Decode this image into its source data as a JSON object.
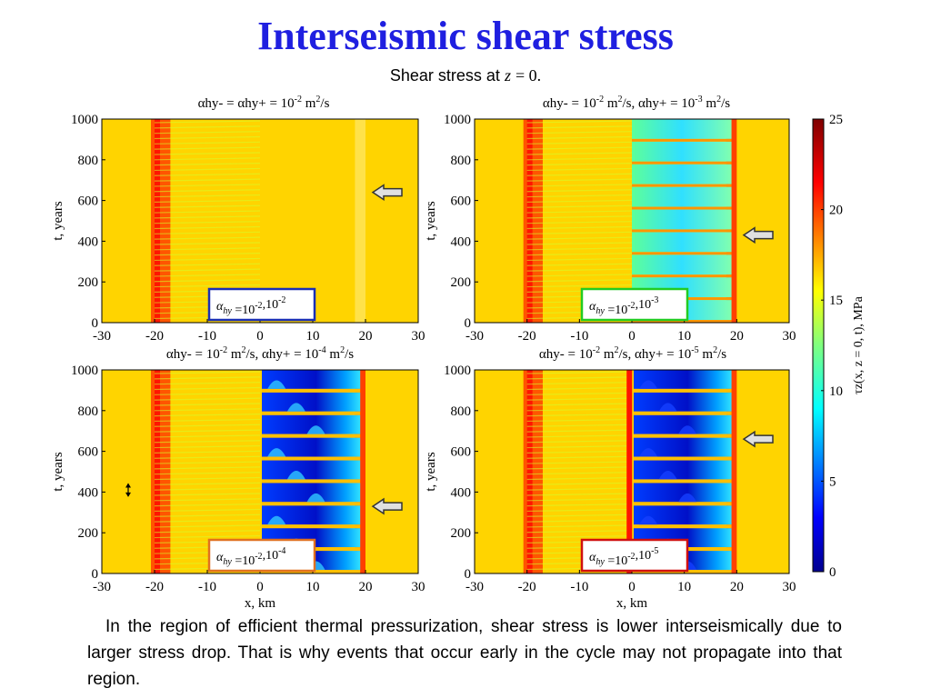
{
  "slide": {
    "title": "Interseismic shear stress",
    "subtitle_prefix": "Shear stress at",
    "subtitle_var": "z",
    "subtitle_suffix": "= 0.",
    "caption": "In the region of efficient thermal pressurization, shear stress is lower interseismically due to larger stress drop. That is why events that occur early in the cycle may not propagate into that region."
  },
  "colors": {
    "title": "#1f1fe0",
    "box_blue": "#1a2fb5",
    "box_green": "#22cc22",
    "box_orange": "#e07020",
    "box_red": "#d01010"
  },
  "colorbar": {
    "label": "τz(x, z = 0, t), MPa",
    "ticks": [
      "0",
      "5",
      "10",
      "15",
      "20",
      "25"
    ],
    "range": [
      0,
      25
    ]
  },
  "chart_data": [
    {
      "type": "heatmap",
      "title_parts": [
        "αhy- = αhy+ = 10",
        "-2",
        " m",
        "2",
        "/s"
      ],
      "xlabel": "",
      "ylabel": "t, years",
      "xlim": [
        -30,
        30
      ],
      "ylim": [
        0,
        1000
      ],
      "xticks": [
        "-30",
        "-20",
        "-10",
        "0",
        "10",
        "20",
        "30"
      ],
      "yticks": [
        "0",
        "200",
        "400",
        "600",
        "800",
        "1000"
      ],
      "legend_box": "αhy = 10^-2, 10^-2",
      "legend_exp": [
        "-2",
        "-2"
      ],
      "arrow_marker_t": 640,
      "background_stress_mpa": 16.5,
      "weakened_zone_x": [
        -20,
        -17
      ],
      "low_stress_zone_x": null
    },
    {
      "type": "heatmap",
      "title_parts": [
        "αhy- = 10",
        "-2",
        " m",
        "2",
        "/s, αhy+ = 10",
        "-3",
        " m",
        "2",
        "/s"
      ],
      "xlabel": "",
      "ylabel": "t, years",
      "xlim": [
        -30,
        30
      ],
      "ylim": [
        0,
        1000
      ],
      "xticks": [
        "-30",
        "-20",
        "-10",
        "0",
        "10",
        "20",
        "30"
      ],
      "yticks": [
        "0",
        "200",
        "400",
        "600",
        "800",
        "1000"
      ],
      "legend_box": "αhy = 10^-2, 10^-3",
      "legend_exp": [
        "-2",
        "-3"
      ],
      "arrow_marker_t": 430,
      "background_stress_mpa": 16.5,
      "weakened_zone_x": [
        -20,
        -17
      ],
      "low_stress_zone_x": [
        0,
        19
      ],
      "low_stress_mpa": 12
    },
    {
      "type": "heatmap",
      "title_parts": [
        "αhy- = 10",
        "-2",
        " m",
        "2",
        "/s, αhy+ = 10",
        "-4",
        " m",
        "2",
        "/s"
      ],
      "xlabel": "x, km",
      "ylabel": "t, years",
      "xlim": [
        -30,
        30
      ],
      "ylim": [
        0,
        1000
      ],
      "xticks": [
        "-30",
        "-20",
        "-10",
        "0",
        "10",
        "20",
        "30"
      ],
      "yticks": [
        "0",
        "200",
        "400",
        "600",
        "800",
        "1000"
      ],
      "legend_box": "αhy = 10^-2, 10^-4",
      "legend_exp": [
        "-2",
        "-4"
      ],
      "arrow_marker_t": 330,
      "double_arrow_t": [
        380,
        440
      ],
      "background_stress_mpa": 16.5,
      "weakened_zone_x": [
        -20,
        -17
      ],
      "low_stress_zone_x": [
        0,
        19
      ],
      "low_stress_mpa": 6
    },
    {
      "type": "heatmap",
      "title_parts": [
        "αhy- = 10",
        "-2",
        " m",
        "2",
        "/s, αhy+ = 10",
        "-5",
        " m",
        "2",
        "/s"
      ],
      "xlabel": "x, km",
      "ylabel": "t, years",
      "xlim": [
        -30,
        30
      ],
      "ylim": [
        0,
        1000
      ],
      "xticks": [
        "-30",
        "-20",
        "-10",
        "0",
        "10",
        "20",
        "30"
      ],
      "yticks": [
        "0",
        "200",
        "400",
        "600",
        "800",
        "1000"
      ],
      "legend_box": "αhy = 10^-2, 10^-5",
      "legend_exp": [
        "-2",
        "-5"
      ],
      "arrow_marker_t": 660,
      "background_stress_mpa": 16.5,
      "weakened_zone_x": [
        -20,
        -17
      ],
      "low_stress_zone_x": [
        0,
        19
      ],
      "low_stress_mpa": 3
    }
  ]
}
